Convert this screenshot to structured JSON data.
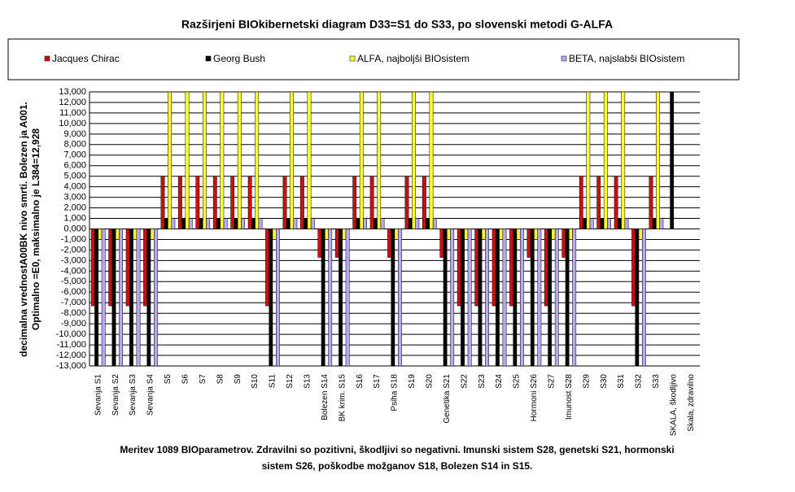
{
  "chart_data": {
    "type": "bar",
    "title": "Razširjeni BIOkibernetski diagram  D33=S1 do S33, po slovenski metodi G-ALFA",
    "ylabel": [
      "decimalna vrednostA00BK nivo smrti. Bolezen ja A001.",
      "Optimalno =E0, maksimalno je L384=12,928"
    ],
    "note": [
      "Meritev 1089 BIOparametrov. Zdravilni so pozitivni, škodljivi so negativni. Imunski sistem S28, genetski S21, hormonski",
      "sistem S26, poškodbe možganov S18, Bolezen S14 in S15."
    ],
    "categories": [
      "Sevanja S1",
      "Sevanja S2",
      "Sevanja S3",
      "Sevanja S4",
      "S5",
      "S6",
      "S7",
      "S8",
      "S9",
      "S10",
      "S11",
      "S12",
      "S13",
      "Bolezen S14",
      "BK krim. S15",
      "S16",
      "S17",
      "Psiha S18",
      "S19",
      "S20",
      "Genetika S21",
      "S22",
      "S23",
      "S24",
      "S25",
      "Hormoni S26",
      "S27",
      "Imunost S28",
      "S29",
      "S30",
      "S31",
      "S32",
      "S33",
      "SKALA, škodljivo",
      "Skala, zdravilno"
    ],
    "series": [
      {
        "name": "Jacques Chirac",
        "color": "#cc1010",
        "values": [
          -7.3,
          -7.3,
          -7.3,
          -7.3,
          5,
          5,
          5,
          5,
          5,
          5,
          -7.3,
          5,
          5,
          -2.7,
          -2.7,
          5,
          5,
          -2.7,
          5,
          5,
          -2.7,
          -7.3,
          -7.3,
          -7.3,
          -7.3,
          -2.7,
          -7.3,
          -2.7,
          5,
          5,
          5,
          -7.3,
          5,
          0,
          0
        ]
      },
      {
        "name": "Georg Bush",
        "color": "#000000",
        "values": [
          -13,
          -13,
          -13,
          -13,
          1,
          1,
          1,
          1,
          1,
          1,
          -13,
          1,
          1,
          -13,
          -13,
          1,
          1,
          -13,
          1,
          1,
          -13,
          -13,
          -13,
          -13,
          -13,
          -13,
          -13,
          -13,
          1,
          1,
          1,
          -13,
          1,
          13,
          0
        ]
      },
      {
        "name": "ALFA, najboljši BIOsistem",
        "color": "#ffff33",
        "values": [
          -1,
          -1,
          -1,
          -1,
          13,
          13,
          13,
          13,
          13,
          13,
          -1,
          13,
          13,
          -1,
          -1,
          13,
          13,
          -1,
          13,
          13,
          -1,
          -1,
          -1,
          -1,
          -1,
          -1,
          -1,
          -1,
          13,
          13,
          13,
          -1,
          13,
          0,
          0
        ]
      },
      {
        "name": "BETA, najslabši BIOsistem",
        "color": "#b8a8f0",
        "values": [
          -13,
          -13,
          -13,
          -13,
          1,
          1,
          1,
          1,
          1,
          1,
          -13,
          1,
          1,
          -13,
          -13,
          1,
          1,
          -13,
          1,
          1,
          -13,
          -13,
          -13,
          -13,
          -13,
          -13,
          -13,
          -13,
          1,
          1,
          1,
          -13,
          1,
          0,
          0
        ]
      }
    ],
    "ylim": [
      -13,
      13
    ],
    "yticks": [
      {
        "value": 13,
        "label": "13,000"
      },
      {
        "value": 12,
        "label": "12,000"
      },
      {
        "value": 11,
        "label": "11,000"
      },
      {
        "value": 10,
        "label": "10,000"
      },
      {
        "value": 9,
        "label": "9,000"
      },
      {
        "value": 8,
        "label": "8,000"
      },
      {
        "value": 7,
        "label": "7,000"
      },
      {
        "value": 6,
        "label": "6,000"
      },
      {
        "value": 5,
        "label": "5,000"
      },
      {
        "value": 4,
        "label": "4,000"
      },
      {
        "value": 3,
        "label": "3,000"
      },
      {
        "value": 2,
        "label": "2,000"
      },
      {
        "value": 1,
        "label": "1,000"
      },
      {
        "value": 0,
        "label": "0,000"
      },
      {
        "value": -1,
        "label": "-1,000"
      },
      {
        "value": -2,
        "label": "-2,000"
      },
      {
        "value": -3,
        "label": "-3,000"
      },
      {
        "value": -4,
        "label": "-4,000"
      },
      {
        "value": -5,
        "label": "-5,000"
      },
      {
        "value": -6,
        "label": "-6,000"
      },
      {
        "value": -7,
        "label": "-7,000"
      },
      {
        "value": -8,
        "label": "-8,000"
      },
      {
        "value": -9,
        "label": "-9,000"
      },
      {
        "value": -10,
        "label": "-10,000"
      },
      {
        "value": -11,
        "label": "-11,000"
      },
      {
        "value": -12,
        "label": "-12,000"
      },
      {
        "value": -13,
        "label": "-13,000"
      }
    ],
    "grid": true
  }
}
